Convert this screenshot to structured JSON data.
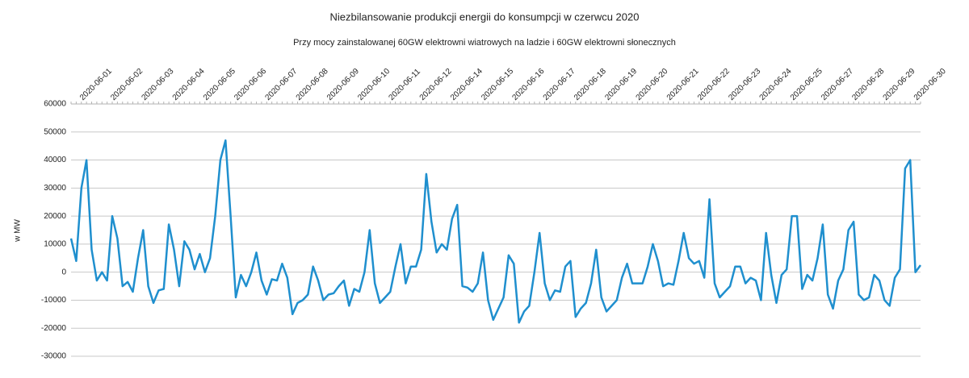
{
  "chart_data": {
    "type": "line",
    "title": "Niezbilansowanie produkcji energii do konsumpcji w czerwcu 2020",
    "subtitle": "Przy mocy zainstalowanej  60GW elektrowni wiatrowych na ladzie i 60GW elektrowni słonecznych",
    "y_label": "w MW",
    "categories": [
      null,
      null,
      "2020-06-01",
      null,
      null,
      null,
      null,
      null,
      "2020-06-02",
      null,
      null,
      null,
      null,
      null,
      "2020-06-03",
      null,
      null,
      null,
      null,
      null,
      "2020-06-04",
      null,
      null,
      null,
      null,
      null,
      "2020-06-05",
      null,
      null,
      null,
      null,
      null,
      "2020-06-06",
      null,
      null,
      null,
      null,
      null,
      "2020-06-07",
      null,
      null,
      null,
      null,
      null,
      "2020-06-08",
      null,
      null,
      null,
      null,
      null,
      "2020-06-09",
      null,
      null,
      null,
      null,
      null,
      "2020-06-10",
      null,
      null,
      null,
      null,
      null,
      "2020-06-11",
      null,
      null,
      null,
      null,
      null,
      "2020-06-12",
      null,
      null,
      null,
      null,
      null,
      "2020-06-14",
      null,
      null,
      null,
      null,
      null,
      "2020-06-15",
      null,
      null,
      null,
      null,
      null,
      "2020-06-16",
      null,
      null,
      null,
      null,
      null,
      "2020-06-17",
      null,
      null,
      null,
      null,
      null,
      "2020-06-18",
      null,
      null,
      null,
      null,
      null,
      "2020-06-19",
      null,
      null,
      null,
      null,
      null,
      "2020-06-20",
      null,
      null,
      null,
      null,
      null,
      "2020-06-21",
      null,
      null,
      null,
      null,
      null,
      "2020-06-22",
      null,
      null,
      null,
      null,
      null,
      "2020-06-23",
      null,
      null,
      null,
      null,
      null,
      "2020-06-24",
      null,
      null,
      null,
      null,
      null,
      "2020-06-25",
      null,
      null,
      null,
      null,
      null,
      "2020-06-27",
      null,
      null,
      null,
      null,
      null,
      "2020-06-28",
      null,
      null,
      null,
      null,
      null,
      "2020-06-29",
      null,
      null,
      null,
      null,
      null,
      "2020-06-30",
      null
    ],
    "series": [
      {
        "name": "w MW",
        "color": "#1f8fce",
        "values": [
          12000,
          4000,
          30000,
          40000,
          8000,
          -3000,
          0,
          -3000,
          20000,
          12000,
          -5000,
          -3500,
          -7000,
          5000,
          15000,
          -5000,
          -11000,
          -6500,
          -6000,
          17000,
          8000,
          -5000,
          11000,
          8000,
          1000,
          6500,
          0,
          5000,
          20000,
          40000,
          47000,
          20000,
          -9000,
          -1000,
          -5000,
          0,
          7000,
          -3000,
          -8000,
          -2500,
          -3000,
          3000,
          -2000,
          -15000,
          -11000,
          -10000,
          -8000,
          2000,
          -3000,
          -10000,
          -8000,
          -7500,
          -5000,
          -3000,
          -12000,
          -6000,
          -7000,
          0,
          15000,
          -4000,
          -11000,
          -9000,
          -7000,
          2000,
          10000,
          -4000,
          2000,
          2000,
          8000,
          35000,
          18000,
          7000,
          10000,
          8000,
          19000,
          24000,
          -5000,
          -5500,
          -7000,
          -4000,
          7000,
          -10000,
          -17000,
          -13000,
          -9000,
          6000,
          3000,
          -18000,
          -14000,
          -12000,
          0,
          14000,
          -4000,
          -10000,
          -6500,
          -7000,
          2000,
          4000,
          -16000,
          -13000,
          -11000,
          -4000,
          8000,
          -9000,
          -14000,
          -12000,
          -10000,
          -2000,
          3000,
          -4000,
          -4000,
          -4000,
          2000,
          10000,
          4000,
          -5000,
          -4000,
          -4500,
          4000,
          14000,
          5000,
          3000,
          4000,
          -2000,
          26000,
          -4000,
          -9000,
          -7000,
          -5000,
          2000,
          2000,
          -4000,
          -2000,
          -3000,
          -10000,
          14000,
          -1000,
          -11000,
          -1000,
          1000,
          20000,
          20000,
          -6000,
          -1000,
          -3000,
          5000,
          17000,
          -8000,
          -13000,
          -3000,
          1000,
          15000,
          18000,
          -8000,
          -10000,
          -9000,
          -1000,
          -3000,
          -10000,
          -12000,
          -2000,
          1000,
          37000,
          40000,
          0,
          2500
        ]
      }
    ],
    "ylim": [
      -30000,
      60000
    ],
    "yticks": [
      -30000,
      -20000,
      -10000,
      0,
      10000,
      20000,
      30000,
      40000,
      50000,
      60000
    ],
    "grid": true
  }
}
